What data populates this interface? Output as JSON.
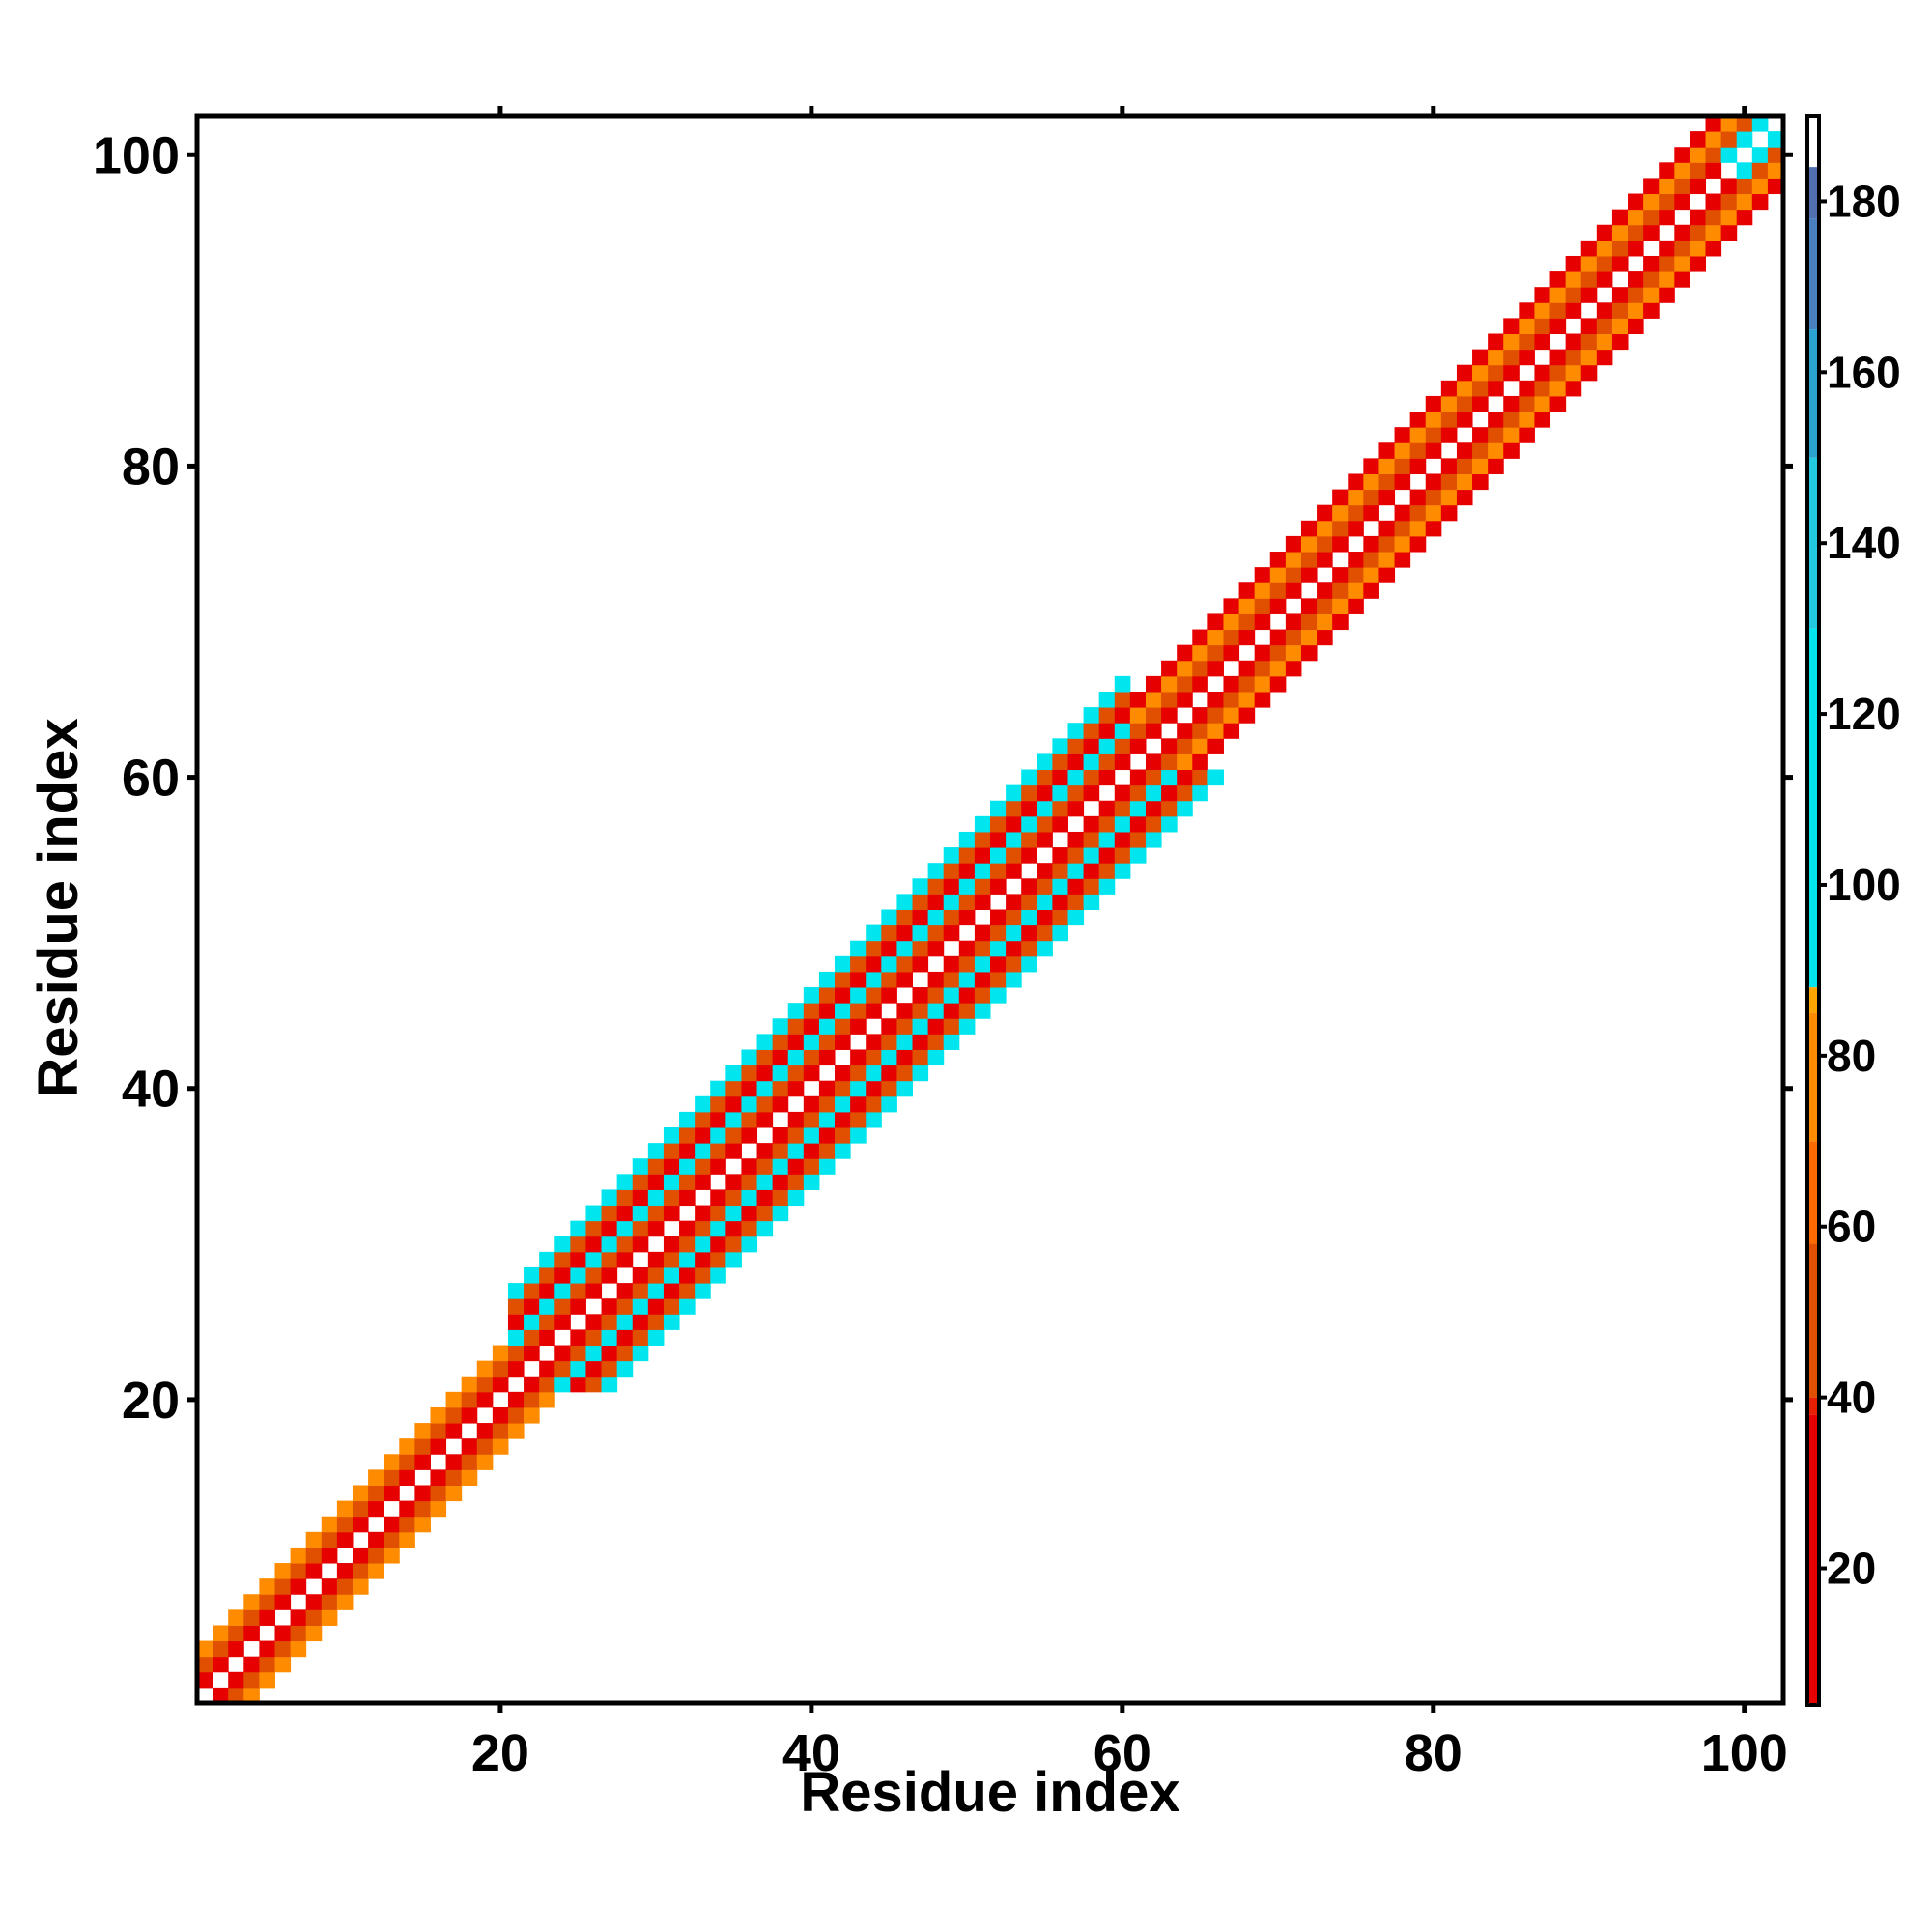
{
  "chart_data": {
    "type": "heatmap",
    "title": "",
    "xlabel": "Residue index",
    "ylabel": "Residue index",
    "xlim": [
      0.5,
      102.5
    ],
    "ylim": [
      0.5,
      102.5
    ],
    "x_ticks": [
      20,
      40,
      60,
      80,
      100
    ],
    "y_ticks": [
      20,
      40,
      60,
      80,
      100
    ],
    "colorbar": {
      "range": [
        4,
        190
      ],
      "ticks": [
        20,
        40,
        60,
        80,
        100,
        120,
        140,
        160,
        180
      ],
      "color_stops": [
        {
          "value": 4,
          "color": "#e60000"
        },
        {
          "value": 38,
          "color": "#e62000"
        },
        {
          "value": 40,
          "color": "#e05000"
        },
        {
          "value": 58,
          "color": "#ff6a00"
        },
        {
          "value": 70,
          "color": "#ff8c00"
        },
        {
          "value": 85,
          "color": "#ffa500"
        },
        {
          "value": 88,
          "color": "#00e5ee"
        },
        {
          "value": 130,
          "color": "#22c8e0"
        },
        {
          "value": 150,
          "color": "#2ba3d1"
        },
        {
          "value": 165,
          "color": "#4a80c0"
        },
        {
          "value": 178,
          "color": "#5070b0"
        },
        {
          "value": 184,
          "color": "#ffffff"
        },
        {
          "value": 190,
          "color": "#ffffff"
        }
      ]
    },
    "cell_values": {
      "min_x": 1,
      "min_y": 1,
      "row_step": 1,
      "note_colors": {
        "red": "#ee1111",
        "orange": "#ff6e00",
        "amber": "#ffa500",
        "cyan": "#16e3ee"
      },
      "diagonal_pattern": [
        {
          "range": [
            1,
            20
          ],
          "offsets": [
            {
              "d": 1,
              "v": 10
            },
            {
              "d": 2,
              "v": 50
            },
            {
              "d": 3,
              "v": 80
            }
          ]
        },
        {
          "range": [
            21,
            60
          ],
          "offsets": [
            {
              "d": 1,
              "v": 10
            },
            {
              "d": 2,
              "v": 50
            },
            {
              "d": 3,
              "v": 110
            },
            {
              "d": 4,
              "v": 30
            },
            {
              "d": 5,
              "v": 55
            },
            {
              "d": 6,
              "v": 115
            }
          ]
        },
        {
          "range": [
            61,
            98
          ],
          "offsets": [
            {
              "d": 1,
              "v": 10
            },
            {
              "d": 2,
              "v": 50
            },
            {
              "d": 3,
              "v": 80
            },
            {
              "d": 4,
              "v": 30
            }
          ]
        },
        {
          "range": [
            99,
            102
          ],
          "offsets": [
            {
              "d": 1,
              "v": 110
            },
            {
              "d": 2,
              "v": 50
            },
            {
              "d": 3,
              "v": 80
            }
          ]
        }
      ]
    }
  }
}
